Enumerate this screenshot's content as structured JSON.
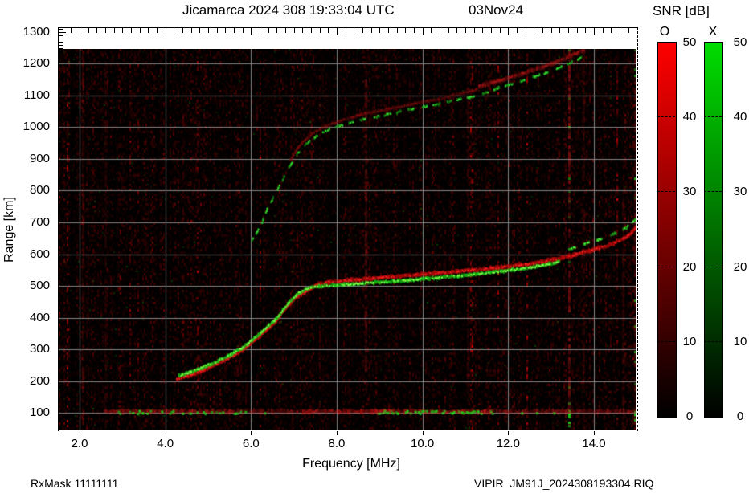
{
  "header": {
    "title": "Jicamarca 2024 308 19:33:04 UTC",
    "date": "03Nov24"
  },
  "footer": {
    "rx_mask": "RxMask 11111111",
    "file_label": "VIPIR  JM91J_2024308193304.RIQ"
  },
  "chart_data": {
    "type": "heatmap",
    "title": "Jicamarca 2024 308 19:33:04 UTC",
    "date": "03Nov24",
    "xlabel": "Frequency [MHz]",
    "ylabel": "Range [km]",
    "xlim": [
      1.5,
      15.0
    ],
    "ylim": [
      43,
      1315
    ],
    "x_major_ticks": [
      2,
      4,
      6,
      8,
      10,
      12,
      14
    ],
    "x_tick_labels": [
      "2.0",
      "4.0",
      "6.0",
      "8.0",
      "10.0",
      "12.0",
      "14.0"
    ],
    "x_minor_step_mhz": 0.2,
    "y_major_ticks": [
      1300,
      1200,
      1100,
      1000,
      900,
      800,
      700,
      600,
      500,
      400,
      300,
      200,
      100
    ],
    "y_minor_step_km": 10,
    "grid": true,
    "grid_color": "#828282",
    "background": "#000000",
    "noise_seed": 5,
    "colorbar": {
      "title": "SNR [dB]",
      "min": 0,
      "max": 50,
      "tick_values": [
        50,
        40,
        30,
        20,
        10,
        0
      ],
      "tick_labels": [
        "50",
        "40",
        "30",
        "20",
        "10",
        "0"
      ],
      "o_label": "O",
      "x_label": "X",
      "o_color": "#ff0000",
      "x_color": "#00dd00"
    },
    "bands": [
      {
        "name": "F-trace O-mode",
        "color": "#cc0a0a",
        "core": "#f52222",
        "width": 5,
        "alpha": 0.85,
        "dash": false,
        "points": [
          [
            4.25,
            206
          ],
          [
            4.65,
            224
          ],
          [
            5.05,
            246
          ],
          [
            5.4,
            268
          ],
          [
            5.75,
            294
          ],
          [
            6.05,
            328
          ],
          [
            6.3,
            357
          ],
          [
            6.55,
            388
          ],
          [
            6.8,
            432
          ],
          [
            7.05,
            466
          ],
          [
            7.3,
            486
          ],
          [
            7.5,
            503
          ],
          [
            7.8,
            512
          ],
          [
            8.2,
            517
          ],
          [
            8.7,
            522
          ],
          [
            9.2,
            528
          ],
          [
            9.7,
            533
          ],
          [
            10.2,
            539
          ],
          [
            10.7,
            544
          ],
          [
            11.2,
            550
          ],
          [
            11.7,
            557
          ],
          [
            12.2,
            564
          ],
          [
            12.7,
            573
          ],
          [
            13.1,
            584
          ],
          [
            13.5,
            597
          ],
          [
            13.9,
            611
          ],
          [
            14.3,
            627
          ],
          [
            14.6,
            643
          ],
          [
            14.8,
            660
          ],
          [
            15.0,
            688
          ]
        ]
      },
      {
        "name": "F-trace X-mode",
        "color": "#17cf17",
        "core": "#8aff50",
        "width": 4,
        "alpha": 0.95,
        "dash": false,
        "points": [
          [
            4.3,
            217
          ],
          [
            4.7,
            235
          ],
          [
            5.1,
            257
          ],
          [
            5.45,
            280
          ],
          [
            5.8,
            306
          ],
          [
            6.1,
            340
          ],
          [
            6.35,
            369
          ],
          [
            6.6,
            400
          ],
          [
            6.85,
            445
          ],
          [
            7.1,
            478
          ],
          [
            7.35,
            495
          ],
          [
            7.6,
            498
          ],
          [
            8.0,
            502
          ],
          [
            8.5,
            507
          ],
          [
            9.0,
            512
          ],
          [
            9.5,
            517
          ],
          [
            10.0,
            522
          ],
          [
            10.5,
            528
          ],
          [
            11.0,
            534
          ],
          [
            11.5,
            541
          ],
          [
            12.0,
            549
          ],
          [
            12.4,
            556
          ],
          [
            12.8,
            565
          ],
          [
            13.2,
            578
          ]
        ]
      },
      {
        "name": "F-trace X-mode tip",
        "color": "#1fc41f",
        "core": "#59ff46",
        "width": 3,
        "alpha": 0.85,
        "dash": true,
        "points": [
          [
            13.4,
            615
          ],
          [
            13.8,
            633
          ],
          [
            14.2,
            650
          ],
          [
            14.5,
            667
          ],
          [
            14.75,
            685
          ],
          [
            14.95,
            708
          ],
          [
            15.02,
            735
          ]
        ]
      },
      {
        "name": "second-hop X-mode",
        "color": "#16a816",
        "core": "#3ce23c",
        "width": 3,
        "alpha": 0.8,
        "dash": true,
        "points": [
          [
            6.0,
            642
          ],
          [
            6.12,
            668
          ],
          [
            6.22,
            692
          ],
          [
            6.35,
            738
          ],
          [
            6.5,
            778
          ],
          [
            6.65,
            815
          ],
          [
            6.85,
            868
          ],
          [
            7.05,
            915
          ],
          [
            7.3,
            950
          ],
          [
            7.6,
            980
          ],
          [
            7.9,
            998
          ],
          [
            8.3,
            1015
          ],
          [
            8.8,
            1030
          ],
          [
            9.3,
            1044
          ],
          [
            9.8,
            1058
          ],
          [
            10.3,
            1071
          ],
          [
            10.8,
            1085
          ],
          [
            11.3,
            1101
          ],
          [
            11.8,
            1125
          ],
          [
            12.3,
            1146
          ],
          [
            12.8,
            1168
          ],
          [
            13.2,
            1188
          ],
          [
            13.5,
            1207
          ],
          [
            13.8,
            1228
          ]
        ]
      },
      {
        "name": "second-hop O-mode faint",
        "color": "#8f1010",
        "core": "#a81212",
        "width": 4,
        "alpha": 0.4,
        "dash": false,
        "points": [
          [
            6.9,
            895
          ],
          [
            7.1,
            940
          ],
          [
            7.4,
            978
          ],
          [
            7.7,
            1002
          ],
          [
            8.1,
            1022
          ],
          [
            8.5,
            1038
          ],
          [
            9.0,
            1052
          ],
          [
            9.5,
            1066
          ],
          [
            10.0,
            1080
          ],
          [
            10.5,
            1094
          ],
          [
            11.0,
            1110
          ],
          [
            11.3,
            1121
          ]
        ]
      },
      {
        "name": "second-hop O-mode bright",
        "color": "#a81212",
        "core": "#c41a1a",
        "width": 5,
        "alpha": 0.55,
        "dash": false,
        "points": [
          [
            11.3,
            1128
          ],
          [
            11.8,
            1148
          ],
          [
            12.3,
            1168
          ],
          [
            12.8,
            1190
          ],
          [
            13.2,
            1210
          ],
          [
            13.5,
            1228
          ],
          [
            13.8,
            1245
          ]
        ]
      }
    ],
    "echo_layer": {
      "range_km": 107,
      "red_segments": [
        {
          "f1": 2.55,
          "f2": 5.6,
          "alpha": 0.7
        },
        {
          "f1": 5.6,
          "f2": 7.2,
          "alpha": 0.45
        },
        {
          "f1": 7.2,
          "f2": 11.6,
          "alpha": 0.9
        },
        {
          "f1": 11.6,
          "f2": 15.0,
          "alpha": 0.5
        }
      ],
      "green_segments": [
        {
          "f1": 2.85,
          "f2": 5.9,
          "density": 0.45
        },
        {
          "f1": 8.95,
          "f2": 11.65,
          "density": 0.55
        }
      ],
      "green_dots": [
        6.3,
        12.3,
        12.65,
        13.05
      ]
    },
    "rfi_columns": [
      {
        "f": 8.68,
        "alpha": 0.5,
        "r1": 150,
        "r2": 1150,
        "green": false
      },
      {
        "f": 13.42,
        "alpha": 0.75,
        "r1": 45,
        "r2": 1246,
        "green": true
      },
      {
        "f": 13.75,
        "alpha": 0.25,
        "r1": 45,
        "r2": 1246,
        "green": false
      },
      {
        "f": 2.08,
        "alpha": 0.3,
        "r1": 45,
        "r2": 1246,
        "green": false
      },
      {
        "f": 2.6,
        "alpha": 0.22,
        "r1": 45,
        "r2": 1246,
        "green": false
      },
      {
        "f": 11.05,
        "alpha": 0.2,
        "r1": 45,
        "r2": 1246,
        "green": false
      },
      {
        "f": 14.68,
        "alpha": 0.28,
        "r1": 45,
        "r2": 800,
        "green": false
      },
      {
        "f": 14.95,
        "alpha": 0.4,
        "r1": 45,
        "r2": 1246,
        "green": true
      }
    ]
  }
}
